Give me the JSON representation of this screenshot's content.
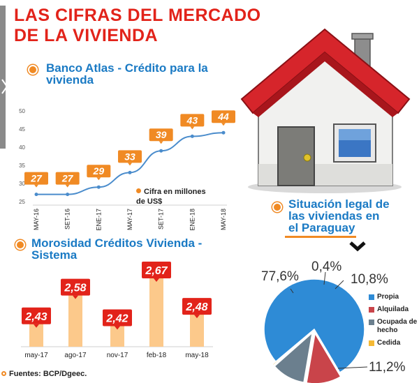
{
  "main_title_line1": "LAS CIFRAS DEL MERCADO",
  "main_title_line2": "DE LA VIVIENDA",
  "section1": {
    "title_line1": "Banco Atlas - Crédito para la",
    "title_line2": "vivienda"
  },
  "section2": {
    "title_line1": "Morosidad Créditos Vivienda -",
    "title_line2": "Sistema"
  },
  "section3": {
    "title_line1": "Situación legal de",
    "title_line2": "las viviendas en",
    "title_line3": "el Paraguay"
  },
  "note_line1": "Cifra en millones",
  "note_line2": "de US$",
  "source": "Fuentes: BCP/Dgeec.",
  "colors": {
    "title_red": "#e2231a",
    "section_blue": "#1a7ac4",
    "accent_orange": "#f08a24",
    "bar_fill": "#fcc98b",
    "label_red": "#e2231a"
  },
  "icons": [
    "house-illustration",
    "chevron-down-icon",
    "bullet-dot-icon"
  ],
  "chart_data": [
    {
      "type": "line",
      "title": "Banco Atlas - Crédito para la vivienda",
      "x": [
        "MAY-16",
        "SET-16",
        "ENE-17",
        "MAY-17",
        "SET-17",
        "ENE-18",
        "MAY-18"
      ],
      "series": [
        {
          "values": [
            27,
            27,
            29,
            33,
            39,
            43,
            44
          ]
        }
      ],
      "ylim": [
        25,
        50
      ],
      "yticks": [
        "25",
        "30",
        "35",
        "40",
        "45",
        "50"
      ],
      "grid": false
    },
    {
      "type": "bar",
      "title": "Morosidad Créditos Vivienda - Sistema",
      "categories": [
        "may-17",
        "ago-17",
        "nov-17",
        "feb-18",
        "may-18"
      ],
      "values": [
        2.43,
        2.58,
        2.42,
        2.67,
        2.48
      ],
      "labels": [
        "2,43",
        "2,58",
        "2,42",
        "2,67",
        "2,48"
      ]
    },
    {
      "type": "pie",
      "title": "Situación legal de las viviendas en el Paraguay",
      "labels": [
        "Propia",
        "Alquilada",
        "Ocupada de hecho",
        "Cedida"
      ],
      "values": [
        77.6,
        11.2,
        10.8,
        0.4
      ],
      "value_labels": [
        "77,6%",
        "11,2%",
        "10,8%",
        "0,4%"
      ],
      "colors": [
        "#2e8bd6",
        "#c9444a",
        "#6b7f8e",
        "#f5b935"
      ],
      "legend_text": [
        "Propia",
        "Alquilada",
        "Ocupada de",
        "hecho",
        "Cedida"
      ]
    }
  ]
}
